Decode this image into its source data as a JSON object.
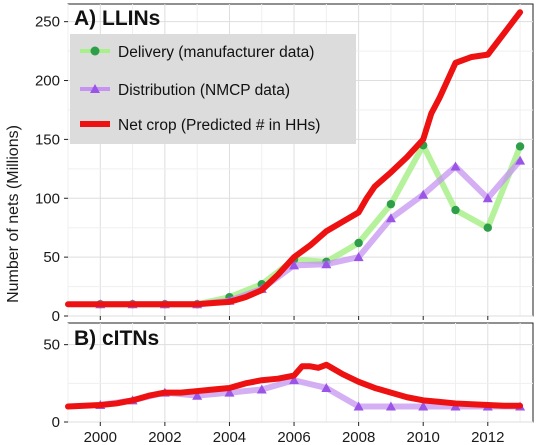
{
  "ylabel": "Number of nets (Millions)",
  "legend": [
    {
      "series": "delivery",
      "label": "Delivery (manufacturer data)"
    },
    {
      "series": "distribution",
      "label": "Distribution (NMCP data)"
    },
    {
      "series": "netcrop",
      "label": "Net crop (Predicted # in HHs)"
    }
  ],
  "colors": {
    "delivery_line": "#a8f08a",
    "delivery_marker": "#2e9e4a",
    "distribution_line": "#c694f0",
    "distribution_marker": "#9a55e6",
    "netcrop": "#ee1111",
    "legend_bg": "#dcdcdc"
  },
  "chart_data": [
    {
      "type": "line",
      "title": "A) LLINs",
      "xlabel": "",
      "ylabel": "Number of nets (Millions)",
      "xlim": [
        1999,
        2013.4
      ],
      "ylim": [
        0,
        265
      ],
      "x_ticks": [
        2000,
        2002,
        2004,
        2006,
        2008,
        2010,
        2012
      ],
      "y_ticks": [
        0,
        50,
        100,
        150,
        200,
        250
      ],
      "grid": true,
      "legend_position": "top-left",
      "series": [
        {
          "key": "delivery",
          "name": "Delivery (manufacturer data)",
          "x": [
            2000,
            2001,
            2002,
            2003,
            2004,
            2005,
            2006,
            2007,
            2008,
            2009,
            2010,
            2011,
            2012,
            2013
          ],
          "y": [
            10,
            10,
            10,
            10,
            16,
            27,
            48,
            46,
            62,
            95,
            145,
            90,
            75,
            144
          ]
        },
        {
          "key": "distribution",
          "name": "Distribution (NMCP data)",
          "x": [
            2000,
            2001,
            2002,
            2003,
            2004,
            2005,
            2006,
            2007,
            2008,
            2009,
            2010,
            2011,
            2012,
            2013
          ],
          "y": [
            10,
            10,
            10,
            10,
            13,
            23,
            43,
            44,
            50,
            83,
            103,
            127,
            100,
            132
          ]
        },
        {
          "key": "netcrop",
          "name": "Net crop (Predicted # in HHs)",
          "x": [
            1999,
            1999.5,
            2000,
            2000.5,
            2001,
            2001.5,
            2002,
            2002.5,
            2003,
            2003.5,
            2004,
            2004.5,
            2005,
            2005.5,
            2006,
            2006.5,
            2007,
            2007.5,
            2008,
            2008.25,
            2008.5,
            2009,
            2009.5,
            2010,
            2010.25,
            2010.5,
            2011,
            2011.5,
            2012,
            2012.5,
            2013
          ],
          "y": [
            10,
            10,
            10,
            10,
            10,
            10,
            10,
            10,
            10,
            11,
            12,
            16,
            22,
            35,
            50,
            60,
            72,
            80,
            88,
            100,
            110,
            122,
            135,
            150,
            172,
            185,
            215,
            220,
            222,
            240,
            258
          ]
        }
      ]
    },
    {
      "type": "line",
      "title": "B) cITNs",
      "xlabel": "",
      "ylabel": "",
      "xlim": [
        1999,
        2013.4
      ],
      "ylim": [
        0,
        64
      ],
      "x_ticks": [
        2000,
        2002,
        2004,
        2006,
        2008,
        2010,
        2012
      ],
      "x_tick_labels": [
        "2000",
        "2002",
        "2004",
        "2006",
        "2008",
        "2010",
        "2012"
      ],
      "y_ticks": [
        0,
        50
      ],
      "grid": true,
      "series": [
        {
          "key": "distribution",
          "name": "Distribution (NMCP data)",
          "x": [
            2000,
            2001,
            2002,
            2003,
            2004,
            2005,
            2006,
            2007,
            2008,
            2009,
            2010,
            2011,
            2012,
            2013
          ],
          "y": [
            11,
            14,
            19,
            17,
            19,
            21,
            27,
            22,
            10,
            10,
            10,
            10,
            10,
            10
          ]
        },
        {
          "key": "netcrop",
          "name": "Net crop (Predicted # in HHs)",
          "x": [
            1999,
            1999.5,
            2000,
            2000.5,
            2001,
            2001.5,
            2002,
            2002.5,
            2003,
            2003.5,
            2004,
            2004.5,
            2005,
            2005.5,
            2006,
            2006.25,
            2006.5,
            2006.75,
            2007,
            2007.25,
            2007.5,
            2008,
            2008.5,
            2009,
            2009.5,
            2010,
            2010.5,
            2011,
            2011.5,
            2012,
            2012.5,
            2013
          ],
          "y": [
            10,
            10.5,
            11,
            12,
            14,
            17,
            19,
            19,
            20,
            21,
            22,
            25,
            27,
            28,
            30,
            36,
            36,
            35,
            37,
            34,
            31,
            26,
            22,
            19,
            16,
            14,
            13,
            12,
            11.5,
            11,
            10.5,
            10.5
          ]
        }
      ]
    }
  ]
}
